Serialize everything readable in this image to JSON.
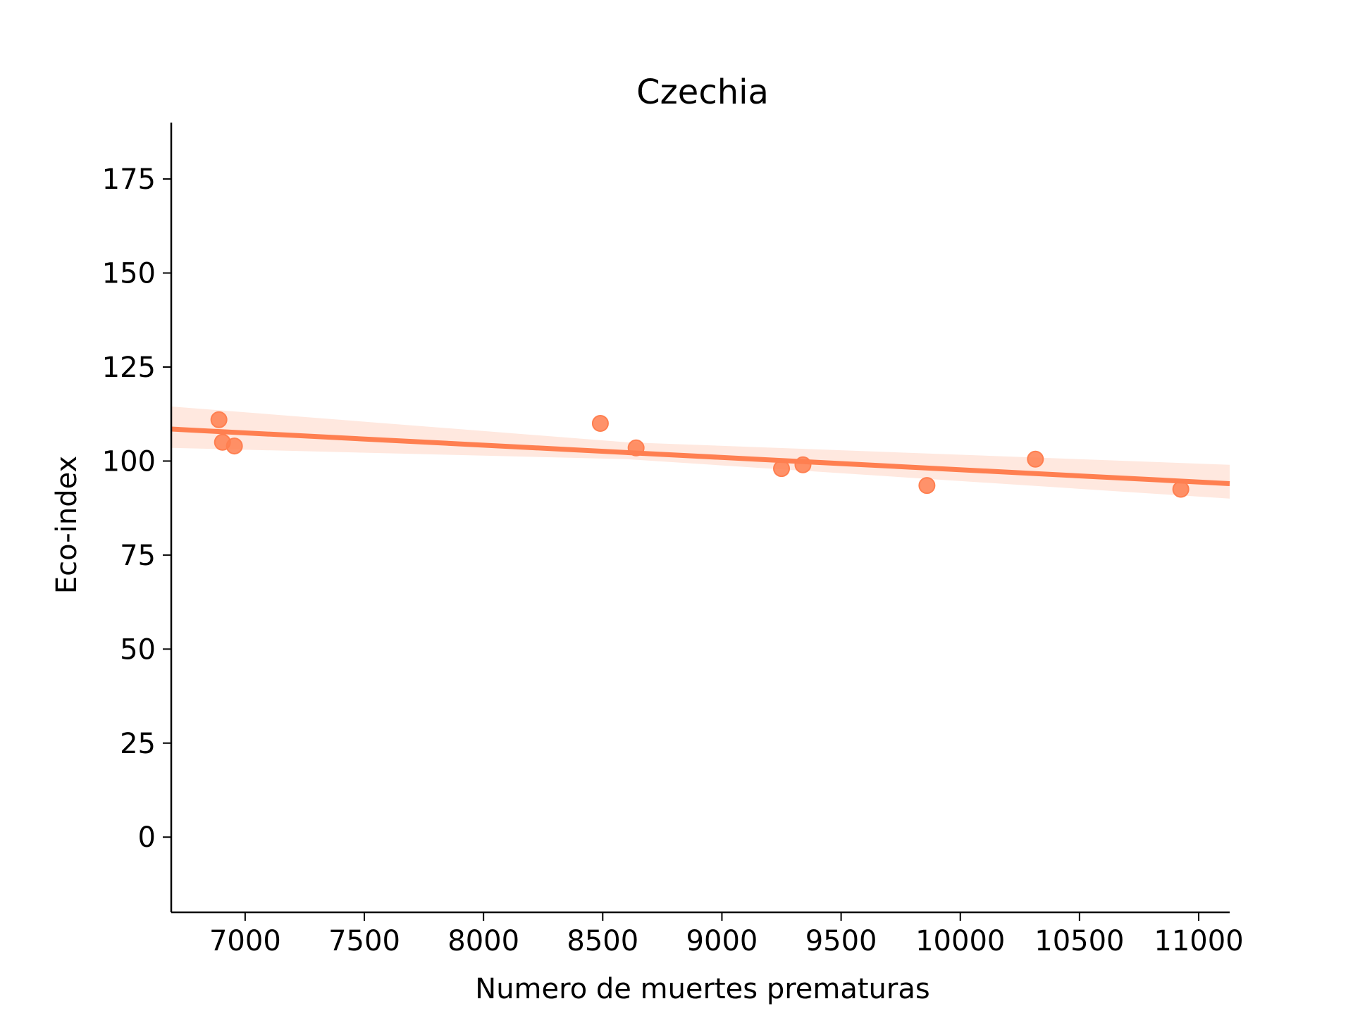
{
  "chart_data": {
    "type": "scatter",
    "title": "Czechia",
    "xlabel": "Numero de muertes prematuras",
    "ylabel": "Eco-index",
    "xlim": [
      6690,
      11130
    ],
    "ylim": [
      -20,
      190
    ],
    "xticks": [
      7000,
      7500,
      8000,
      8500,
      9000,
      9500,
      10000,
      10500,
      11000
    ],
    "yticks": [
      0,
      25,
      50,
      75,
      100,
      125,
      150,
      175
    ],
    "grid": false,
    "series": [
      {
        "points": [
          {
            "x": 6890,
            "y": 111.0
          },
          {
            "x": 6905,
            "y": 105.0
          },
          {
            "x": 6955,
            "y": 104.0
          },
          {
            "x": 8490,
            "y": 110.0
          },
          {
            "x": 8640,
            "y": 103.5
          },
          {
            "x": 9250,
            "y": 98.0
          },
          {
            "x": 9340,
            "y": 99.0
          },
          {
            "x": 9860,
            "y": 93.5
          },
          {
            "x": 10315,
            "y": 100.5
          },
          {
            "x": 10925,
            "y": 92.5
          }
        ],
        "color": "#ff7f50"
      }
    ],
    "regression": {
      "color": "#ff7f50",
      "line": [
        {
          "x": 6690,
          "y": 108.5
        },
        {
          "x": 11130,
          "y": 94.0
        }
      ],
      "confidence_band": {
        "upper": [
          {
            "x": 6690,
            "y": 114.5
          },
          {
            "x": 8600,
            "y": 105.0
          },
          {
            "x": 11130,
            "y": 99.0
          }
        ],
        "lower": [
          {
            "x": 6690,
            "y": 103.5
          },
          {
            "x": 8600,
            "y": 100.5
          },
          {
            "x": 11130,
            "y": 90.0
          }
        ]
      }
    }
  }
}
